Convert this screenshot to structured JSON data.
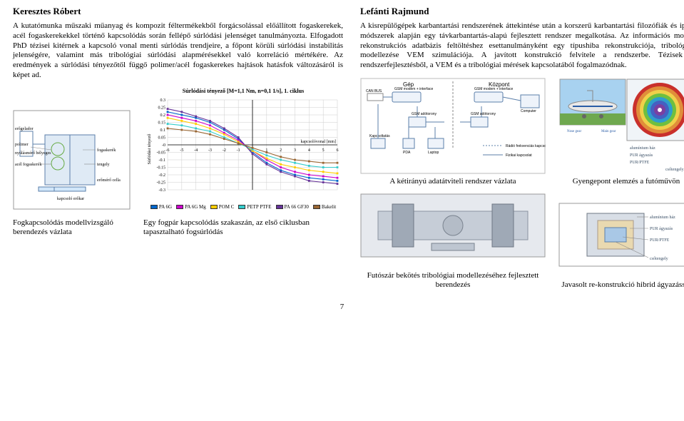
{
  "left": {
    "author": "Keresztes Róbert",
    "paragraph": "A kutatómunka műszaki műanyag és kompozit féltermékekből forgácsolással előállított fogaskerekek, acél fogaskerekekkel történő kapcsolódás során fellépő súrlódási jelenséget tanulmányozta. Elfogadott PhD tézisei kitérnek a kapcsoló vonal menti súrlódás trendjeire, a főpont körüli súrlódási instabilitás jelenségére, valamint más tribológiai súrlódási alapmérésekkel való korreláció mértékére. Az eredmények a súrlódási tényezőtől függő polimer/acél fogaskerekes hajtások hatásfok változásáról is képet ad.",
    "chart": {
      "type": "line",
      "title": "Súrlódási tényező [M=1,1 Nm, n=0,1 1/s], 1. ciklus",
      "ylabel": "Súrlódási tényező",
      "xlabel": "kapcsolóvonal [mm]",
      "xlim": [
        -6,
        6
      ],
      "xtick_step": 1,
      "ylim": [
        -0.3,
        0.3
      ],
      "ytick_step": 0.05,
      "grid_color": "#cccccc",
      "background_color": "#ffffff",
      "series": [
        {
          "name": "PA 6G",
          "color": "#0066cc",
          "points": [
            [
              -6,
              0.22
            ],
            [
              -5,
              0.2
            ],
            [
              -4,
              0.18
            ],
            [
              -3,
              0.15
            ],
            [
              -2,
              0.1
            ],
            [
              -1,
              0.04
            ],
            [
              0,
              -0.05
            ],
            [
              1,
              -0.12
            ],
            [
              2,
              -0.17
            ],
            [
              3,
              -0.2
            ],
            [
              4,
              -0.22
            ],
            [
              5,
              -0.23
            ],
            [
              6,
              -0.24
            ]
          ]
        },
        {
          "name": "PA 6G Mg",
          "color": "#cc00cc",
          "points": [
            [
              -6,
              0.2
            ],
            [
              -5,
              0.18
            ],
            [
              -4,
              0.16
            ],
            [
              -3,
              0.13
            ],
            [
              -2,
              0.08
            ],
            [
              -1,
              0.03
            ],
            [
              0,
              -0.04
            ],
            [
              1,
              -0.1
            ],
            [
              2,
              -0.15
            ],
            [
              3,
              -0.18
            ],
            [
              4,
              -0.2
            ],
            [
              5,
              -0.21
            ],
            [
              6,
              -0.22
            ]
          ]
        },
        {
          "name": "POM C",
          "color": "#ffcc00",
          "points": [
            [
              -6,
              0.18
            ],
            [
              -5,
              0.16
            ],
            [
              -4,
              0.14
            ],
            [
              -3,
              0.11
            ],
            [
              -2,
              0.07
            ],
            [
              -1,
              0.02
            ],
            [
              0,
              -0.04
            ],
            [
              1,
              -0.09
            ],
            [
              2,
              -0.13
            ],
            [
              3,
              -0.15
            ],
            [
              4,
              -0.17
            ],
            [
              5,
              -0.18
            ],
            [
              6,
              -0.19
            ]
          ]
        },
        {
          "name": "PETP PTFE",
          "color": "#33cccc",
          "points": [
            [
              -6,
              0.14
            ],
            [
              -5,
              0.13
            ],
            [
              -4,
              0.11
            ],
            [
              -3,
              0.09
            ],
            [
              -2,
              0.05
            ],
            [
              -1,
              0.01
            ],
            [
              0,
              -0.03
            ],
            [
              1,
              -0.07
            ],
            [
              2,
              -0.1
            ],
            [
              3,
              -0.12
            ],
            [
              4,
              -0.14
            ],
            [
              5,
              -0.15
            ],
            [
              6,
              -0.15
            ]
          ]
        },
        {
          "name": "PA 66 GF30",
          "color": "#663399",
          "points": [
            [
              -6,
              0.24
            ],
            [
              -5,
              0.22
            ],
            [
              -4,
              0.19
            ],
            [
              -3,
              0.16
            ],
            [
              -2,
              0.11
            ],
            [
              -1,
              0.05
            ],
            [
              0,
              -0.06
            ],
            [
              1,
              -0.13
            ],
            [
              2,
              -0.18
            ],
            [
              3,
              -0.21
            ],
            [
              4,
              -0.24
            ],
            [
              5,
              -0.25
            ],
            [
              6,
              -0.26
            ]
          ]
        },
        {
          "name": "Bakelit",
          "color": "#996633",
          "points": [
            [
              -6,
              0.11
            ],
            [
              -5,
              0.1
            ],
            [
              -4,
              0.09
            ],
            [
              -3,
              0.07
            ],
            [
              -2,
              0.04
            ],
            [
              -1,
              0.01
            ],
            [
              0,
              -0.02
            ],
            [
              1,
              -0.05
            ],
            [
              2,
              -0.08
            ],
            [
              3,
              -0.1
            ],
            [
              4,
              -0.11
            ],
            [
              5,
              -0.12
            ],
            [
              6,
              -0.12
            ]
          ]
        }
      ]
    },
    "mech_labels": {
      "a": "erőgelador",
      "b": "polimer",
      "c": "nyúlásmérő bélyeges",
      "d": "acél fogaskerék",
      "e": "kapcsoló erőkar",
      "f": "fogaskerék",
      "g": "tengely",
      "h": "erőmérő cella"
    },
    "caption1": "Fogkapcsolódás modellvizsgáló berendezés vázlata",
    "caption2": "Egy fogpár kapcsolódás szakaszán, az első ciklusban tapasztalható fogsúrlódás"
  },
  "right": {
    "author": "Lefánti Rajmund",
    "paragraph": "A kisrepülőgépek karbantartási rendszerének áttekintése után a korszerű karbantartási filozófiák és ipari módszerek alapján egy távkarbantartás-alapú fejlesztett rendszer megalkotása. Az információs modul rekonstrukciós adatbázis feltöltéshez esettanulmányként egy típushiba rekonstrukciója, tribológiai modellezése VEM szimulációja. A javított konstrukció felvitele a rendszerbe. Tézisek a rendszerfejlesztésből, a VEM és a tribológiai mérések kapcsolatából fogalmazódnak.",
    "system": {
      "gep": "Gép",
      "kozpont": "Központ",
      "canbus": "CAN BUS",
      "gsm_modem": "GSM modem + interface",
      "gsm_ant": "GSM adótorony",
      "kapcsoltat": "Kapcsoltatás",
      "pda": "PDA",
      "laptop": "Laptop",
      "comp": "Computer",
      "radio": "Rádió frekvenciás kapcsolat",
      "fizikai": "Fizikai kapcsolat"
    },
    "fea": {
      "bg": "#f0f4f8",
      "rings": [
        "#c9302c",
        "#e08e3a",
        "#efd04a",
        "#6fbf3f",
        "#2e9ecc",
        "#4560c2",
        "#7b3fa0"
      ]
    },
    "plane_colors": {
      "sky": "#a8d2f0",
      "grass": "#6fa84f",
      "fuselage": "#e8e8e8",
      "stripe": "#2b5da6"
    },
    "cutaway_labels": {
      "a": "alumínium ház",
      "b": "PUR ágyazás",
      "c": "PUR/PTFE",
      "d": "csőtengely"
    },
    "caption1": "A kétirányú adatátviteli rendszer vázlata",
    "caption2": "Gyengepont elemzés a futóművön",
    "caption3": "Futószár bekötés tribológiai modellezéséhez fejlesztett berendezés",
    "caption4": "Javasolt re-konstrukció hibrid ágyazással"
  },
  "page_number": "7"
}
